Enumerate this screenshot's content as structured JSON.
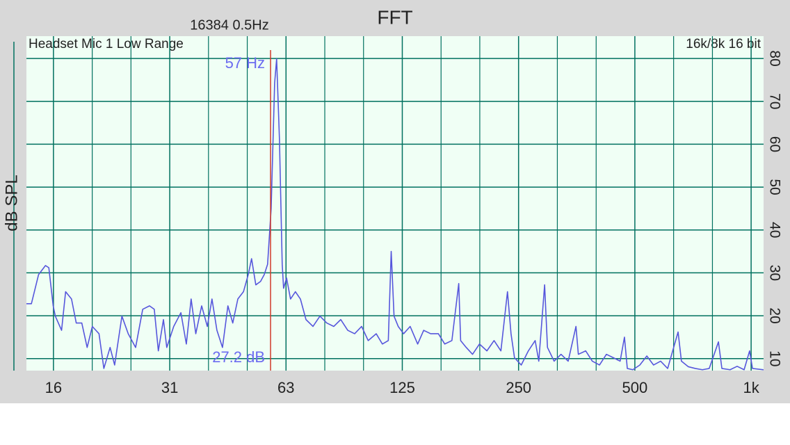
{
  "chart_data": {
    "type": "line",
    "title": "FFT",
    "subtitle": "16384  0.5Hz",
    "y_label": "dB SPL",
    "annotations": {
      "top_left": "Headset Mic 1 Low Range",
      "top_right": "16k/8k 16 bit"
    },
    "cursor": {
      "x": 57,
      "x_label": "57 Hz",
      "y_label": "27.2 dB",
      "color": "#d03a2a",
      "text_color": "#6b6bf0"
    },
    "log_x": true,
    "grid": true,
    "grid_color": "#00705f",
    "xlim": [
      13.3,
      1077
    ],
    "ylim": [
      7.2,
      85.2
    ],
    "xticks": [
      {
        "value": 15.625,
        "label": "16"
      },
      {
        "value": 31.25,
        "label": "31"
      },
      {
        "value": 62.5,
        "label": "63"
      },
      125,
      250,
      500,
      {
        "value": 1000,
        "label": "1k"
      }
    ],
    "xminorticks": [
      19.69,
      24.8,
      39.37,
      49.61,
      78.75,
      99.21,
      157.5,
      198.4,
      315,
      397,
      630,
      794
    ],
    "yticks": [
      10,
      20,
      30,
      40,
      50,
      60,
      70,
      80
    ],
    "x": [
      13.3,
      13.7,
      14.3,
      14.9,
      15.2,
      15.6,
      15.8,
      16.4,
      16.8,
      17.4,
      17.9,
      18.5,
      19.1,
      19.7,
      20.5,
      21.1,
      21.9,
      22.5,
      23.5,
      24.4,
      25.5,
      26.6,
      27.7,
      28.5,
      29.2,
      30.1,
      30.7,
      32.0,
      33.4,
      34.5,
      35.5,
      36.5,
      37.8,
      39.1,
      40.2,
      41.4,
      42.8,
      44.2,
      45.5,
      46.9,
      48.5,
      49.9,
      50.9,
      52.2,
      53.7,
      54.9,
      56.0,
      57.2,
      58.4,
      59.1,
      60.1,
      61.1,
      61.6,
      62.7,
      64.2,
      66.1,
      68.1,
      70.4,
      73.4,
      76.5,
      79.7,
      83.1,
      86.6,
      90.3,
      94.1,
      98.1,
      102,
      107,
      111,
      115,
      117,
      119,
      122,
      126,
      131,
      137,
      142,
      148,
      155,
      161,
      168,
      175,
      177,
      183,
      190,
      198,
      207,
      216,
      225,
      234,
      239,
      244,
      254,
      265,
      276,
      282,
      292,
      297,
      309,
      322,
      336,
      352,
      357,
      373,
      388,
      405,
      422,
      440,
      458,
      470,
      478,
      494,
      515,
      537,
      559,
      583,
      608,
      647,
      660,
      688,
      717,
      748,
      779,
      823,
      840,
      882,
      920,
      959,
      991,
      1008,
      1077
    ],
    "series": [
      {
        "color": "#5656dc",
        "values": [
          22.8,
          22.8,
          29.6,
          31.7,
          31.2,
          22.3,
          19.9,
          16.6,
          25.6,
          23.9,
          18.3,
          18.3,
          12.6,
          17.5,
          15.8,
          7.7,
          12.6,
          8.5,
          19.9,
          15.8,
          12.6,
          21.5,
          22.3,
          21.5,
          11.8,
          19.1,
          12.6,
          17.5,
          20.7,
          13.4,
          23.9,
          15.8,
          22.3,
          17.5,
          23.9,
          16.6,
          12.6,
          22.3,
          18.3,
          23.9,
          25.6,
          29.6,
          33.3,
          27.2,
          28.0,
          29.6,
          32.0,
          45.0,
          74.2,
          79.9,
          61.2,
          32.0,
          26.4,
          28.8,
          23.9,
          25.6,
          23.9,
          19.1,
          17.5,
          19.9,
          18.3,
          17.5,
          19.1,
          16.6,
          15.8,
          17.5,
          14.2,
          15.8,
          13.4,
          14.2,
          35.0,
          19.9,
          17.5,
          15.8,
          17.5,
          13.4,
          16.6,
          15.8,
          15.8,
          13.4,
          14.2,
          27.5,
          14.2,
          12.6,
          11.0,
          13.4,
          11.8,
          14.2,
          11.8,
          25.6,
          15.8,
          10.2,
          8.5,
          11.8,
          14.2,
          9.4,
          27.2,
          12.6,
          9.4,
          11.0,
          9.4,
          17.5,
          11.0,
          11.8,
          9.4,
          8.5,
          11.0,
          10.2,
          9.4,
          15.0,
          7.7,
          7.4,
          8.5,
          10.6,
          8.5,
          9.4,
          7.7,
          16.2,
          9.4,
          8.1,
          7.7,
          7.4,
          7.7,
          13.9,
          7.7,
          7.4,
          8.2,
          7.4,
          11.8,
          7.7,
          7.4
        ]
      }
    ]
  }
}
